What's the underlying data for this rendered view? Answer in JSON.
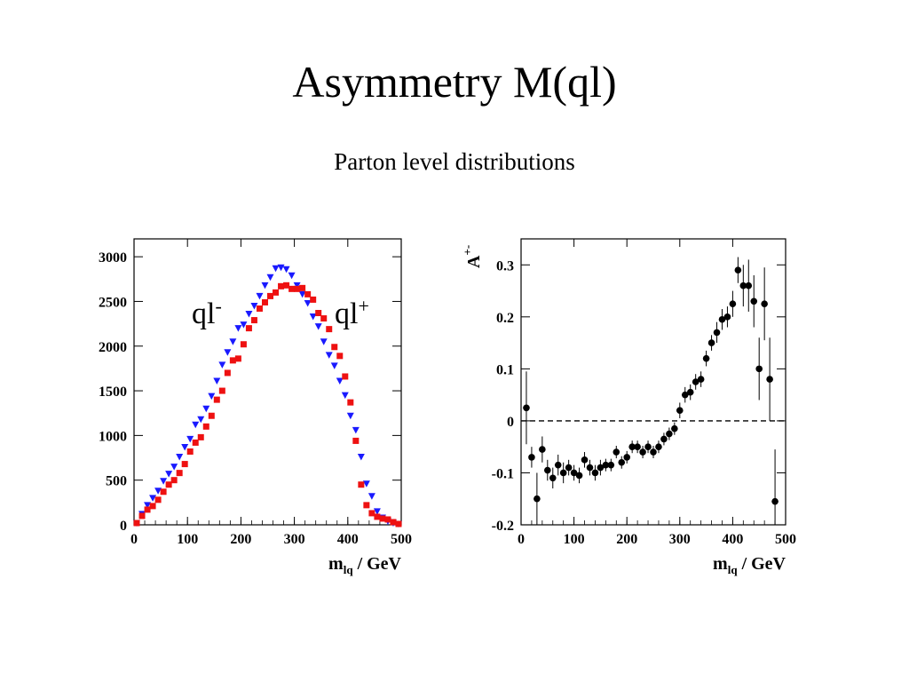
{
  "slide": {
    "title": "Asymmetry M(ql)",
    "subtitle": "Parton level distributions"
  },
  "chart_data": [
    {
      "type": "scatter",
      "xlabel_main": "m",
      "xlabel_sub": "lq",
      "xlabel_unit": " / GeV",
      "ylabel": "",
      "xlim": [
        0,
        500
      ],
      "ylim": [
        0,
        3200
      ],
      "xticks": [
        0,
        100,
        200,
        300,
        400,
        500
      ],
      "yticks": [
        0,
        500,
        1000,
        1500,
        2000,
        2500,
        3000
      ],
      "annotations": [
        {
          "text": "ql",
          "sup": "-",
          "color": "#000000"
        },
        {
          "text": "ql",
          "sup": "+",
          "color": "#000000"
        }
      ],
      "series": [
        {
          "name": "ql-",
          "marker": "triangle-down",
          "color": "#1a1aff",
          "x": [
            5,
            15,
            25,
            35,
            45,
            55,
            65,
            75,
            85,
            95,
            105,
            115,
            125,
            135,
            145,
            155,
            165,
            175,
            185,
            195,
            205,
            215,
            225,
            235,
            245,
            255,
            265,
            275,
            285,
            295,
            305,
            315,
            325,
            335,
            345,
            355,
            365,
            375,
            385,
            395,
            405,
            415,
            425,
            435,
            445,
            455,
            465,
            475,
            485,
            495
          ],
          "y": [
            20,
            120,
            220,
            300,
            380,
            490,
            570,
            650,
            760,
            870,
            960,
            1120,
            1180,
            1300,
            1440,
            1610,
            1790,
            1930,
            2050,
            2200,
            2240,
            2360,
            2450,
            2560,
            2680,
            2770,
            2870,
            2880,
            2860,
            2790,
            2680,
            2580,
            2480,
            2330,
            2220,
            2050,
            1900,
            1780,
            1610,
            1450,
            1220,
            1060,
            760,
            460,
            320,
            150,
            80,
            40,
            20,
            10
          ]
        },
        {
          "name": "ql+",
          "marker": "square",
          "color": "#ee1111",
          "x": [
            5,
            15,
            25,
            35,
            45,
            55,
            65,
            75,
            85,
            95,
            105,
            115,
            125,
            135,
            145,
            155,
            165,
            175,
            185,
            195,
            205,
            215,
            225,
            235,
            245,
            255,
            265,
            275,
            285,
            295,
            305,
            315,
            325,
            335,
            345,
            355,
            365,
            375,
            385,
            395,
            405,
            415,
            425,
            435,
            445,
            455,
            465,
            475,
            485,
            495
          ],
          "y": [
            20,
            100,
            170,
            210,
            280,
            370,
            450,
            500,
            580,
            680,
            820,
            920,
            980,
            1100,
            1220,
            1400,
            1500,
            1700,
            1840,
            1860,
            2020,
            2200,
            2290,
            2420,
            2490,
            2560,
            2600,
            2670,
            2680,
            2640,
            2640,
            2650,
            2580,
            2520,
            2370,
            2310,
            2190,
            1990,
            1890,
            1660,
            1370,
            940,
            450,
            220,
            130,
            90,
            70,
            60,
            30,
            10
          ]
        }
      ]
    },
    {
      "type": "scatter",
      "xlabel_main": "m",
      "xlabel_sub": "lq",
      "xlabel_unit": " / GeV",
      "ylabel_main": "A",
      "ylabel_sup": "+-",
      "xlim": [
        0,
        500
      ],
      "ylim": [
        -0.2,
        0.35
      ],
      "xticks": [
        0,
        100,
        200,
        300,
        400,
        500
      ],
      "yticks": [
        -0.2,
        -0.1,
        0,
        0.1,
        0.2,
        0.3
      ],
      "ytick_labels": [
        "-0.2",
        "-0.1",
        "0",
        "0.1",
        "0.2",
        "0.3"
      ],
      "reference_line": 0,
      "series": [
        {
          "name": "",
          "marker": "circle",
          "color": "#000000",
          "x": [
            10,
            20,
            30,
            40,
            50,
            60,
            70,
            80,
            90,
            100,
            110,
            120,
            130,
            140,
            150,
            160,
            170,
            180,
            190,
            200,
            210,
            220,
            230,
            240,
            250,
            260,
            270,
            280,
            290,
            300,
            310,
            320,
            330,
            340,
            350,
            360,
            370,
            380,
            390,
            400,
            410,
            420,
            430,
            440,
            450,
            460,
            470,
            480
          ],
          "y": [
            0.025,
            -0.07,
            -0.15,
            -0.055,
            -0.095,
            -0.11,
            -0.085,
            -0.1,
            -0.09,
            -0.1,
            -0.105,
            -0.075,
            -0.09,
            -0.1,
            -0.09,
            -0.085,
            -0.085,
            -0.06,
            -0.08,
            -0.07,
            -0.05,
            -0.05,
            -0.06,
            -0.05,
            -0.06,
            -0.05,
            -0.035,
            -0.025,
            -0.015,
            0.02,
            0.05,
            0.055,
            0.075,
            0.08,
            0.12,
            0.15,
            0.17,
            0.195,
            0.2,
            0.225,
            0.29,
            0.26,
            0.26,
            0.23,
            0.1,
            0.225,
            0.08,
            -0.155
          ],
          "err": [
            0.07,
            0.02,
            0.05,
            0.025,
            0.02,
            0.02,
            0.02,
            0.02,
            0.015,
            0.015,
            0.015,
            0.015,
            0.015,
            0.015,
            0.015,
            0.012,
            0.012,
            0.012,
            0.012,
            0.012,
            0.012,
            0.012,
            0.012,
            0.012,
            0.012,
            0.012,
            0.012,
            0.012,
            0.012,
            0.015,
            0.015,
            0.015,
            0.015,
            0.015,
            0.015,
            0.015,
            0.02,
            0.02,
            0.02,
            0.025,
            0.025,
            0.04,
            0.05,
            0.05,
            0.06,
            0.07,
            0.08,
            0.1
          ]
        }
      ]
    }
  ]
}
